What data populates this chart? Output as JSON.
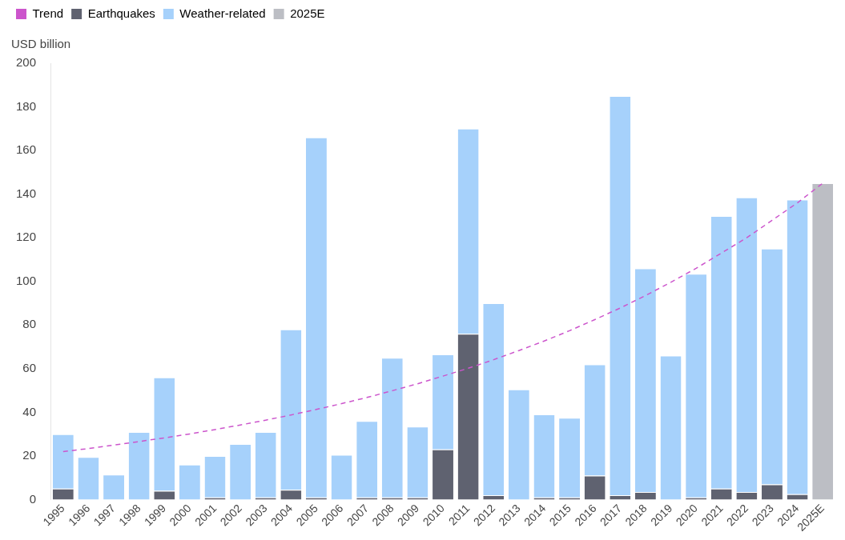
{
  "chart_data": {
    "type": "bar",
    "stacked": true,
    "ylabel": "USD billion",
    "legend": "top left",
    "grid": false,
    "categories": [
      "1995",
      "1996",
      "1997",
      "1998",
      "1999",
      "2000",
      "2001",
      "2002",
      "2003",
      "2004",
      "2005",
      "2006",
      "2007",
      "2008",
      "2009",
      "2010",
      "2011",
      "2012",
      "2013",
      "2014",
      "2015",
      "2016",
      "2017",
      "2018",
      "2019",
      "2020",
      "2021",
      "2022",
      "2023",
      "2024",
      "2025E"
    ],
    "ylim": [
      0,
      200
    ],
    "yticks": [
      0,
      20,
      40,
      60,
      80,
      100,
      120,
      140,
      160,
      180,
      200
    ],
    "series": [
      {
        "name": "Trend",
        "type": "line",
        "line_style": "dashed",
        "marker": "none",
        "color": "#cc55cc",
        "values": [
          22,
          23.4,
          25,
          26.6,
          28.3,
          30.1,
          32.1,
          34.2,
          36.4,
          38.8,
          41.3,
          44,
          46.8,
          49.9,
          53.1,
          56.6,
          60.2,
          64.1,
          68.3,
          72.7,
          77.4,
          82.5,
          87.8,
          93.5,
          99.6,
          106,
          113,
          120,
          128,
          136,
          145
        ]
      },
      {
        "name": "Earthquakes",
        "color": "#5f6270",
        "values": [
          5,
          0,
          0,
          0,
          4,
          0,
          1,
          0,
          1,
          4.5,
          1,
          0,
          1,
          1,
          1,
          23,
          76,
          2,
          0,
          1,
          1,
          11,
          2,
          3.5,
          0,
          1,
          5,
          3.5,
          7,
          2.5,
          null
        ]
      },
      {
        "name": "Weather-related",
        "color": "#a6d1fb",
        "values": [
          25,
          19.5,
          11.5,
          31,
          52,
          16,
          19,
          25.5,
          30,
          73.5,
          165,
          20.5,
          35,
          64,
          32.5,
          43.5,
          94,
          88,
          50.5,
          38,
          36.5,
          51,
          183,
          102.5,
          66,
          102.5,
          125,
          135,
          108,
          135,
          null
        ]
      },
      {
        "name": "2025E",
        "color": "#bcbec4",
        "values": [
          null,
          null,
          null,
          null,
          null,
          null,
          null,
          null,
          null,
          null,
          null,
          null,
          null,
          null,
          null,
          null,
          null,
          null,
          null,
          null,
          null,
          null,
          null,
          null,
          null,
          null,
          null,
          null,
          null,
          null,
          145
        ]
      }
    ]
  }
}
